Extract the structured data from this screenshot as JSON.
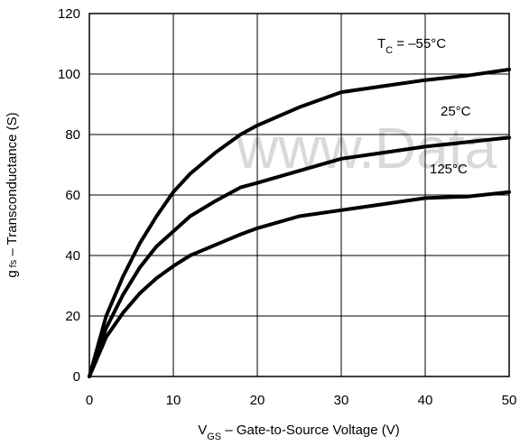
{
  "chart_data": {
    "type": "line",
    "xlabel": {
      "main": "V",
      "sub": "GS",
      "rest": " – Gate-to-Source Voltage (V)"
    },
    "ylabel": {
      "main": "g",
      "sub": "fs",
      "rest": " – Transconductance (S)"
    },
    "xlim": [
      0,
      50
    ],
    "ylim": [
      0,
      120
    ],
    "xticks": [
      0,
      10,
      20,
      30,
      40,
      50
    ],
    "yticks": [
      0,
      20,
      40,
      60,
      80,
      100,
      120
    ],
    "grid": true,
    "watermark": "www.Data",
    "series": [
      {
        "name": "T_C = –55°C",
        "label": {
          "main": "T",
          "sub": "C",
          "rest": " = –55°C"
        },
        "x": [
          0,
          2,
          4,
          6,
          8,
          10,
          12,
          15,
          18,
          20,
          25,
          30,
          35,
          40,
          45,
          50
        ],
        "y": [
          0,
          20,
          33,
          44,
          53,
          61,
          67,
          74,
          80,
          83,
          89,
          94,
          96,
          98,
          99.5,
          101.5
        ]
      },
      {
        "name": "25°C",
        "label": {
          "main": "25°C",
          "sub": "",
          "rest": ""
        },
        "x": [
          0,
          2,
          4,
          6,
          8,
          10,
          12,
          15,
          18,
          20,
          25,
          30,
          35,
          40,
          45,
          50
        ],
        "y": [
          0,
          16,
          27,
          36,
          43,
          48,
          53,
          58,
          62.5,
          64,
          68,
          72,
          74,
          76,
          77.5,
          79
        ]
      },
      {
        "name": "125°C",
        "label": {
          "main": "125°C",
          "sub": "",
          "rest": ""
        },
        "x": [
          0,
          2,
          4,
          6,
          8,
          10,
          12,
          15,
          18,
          20,
          25,
          30,
          35,
          40,
          45,
          50
        ],
        "y": [
          0,
          13,
          21,
          27.5,
          32.5,
          36.5,
          40,
          43.5,
          47,
          49,
          53,
          55,
          57,
          59,
          59.5,
          61
        ]
      }
    ]
  }
}
